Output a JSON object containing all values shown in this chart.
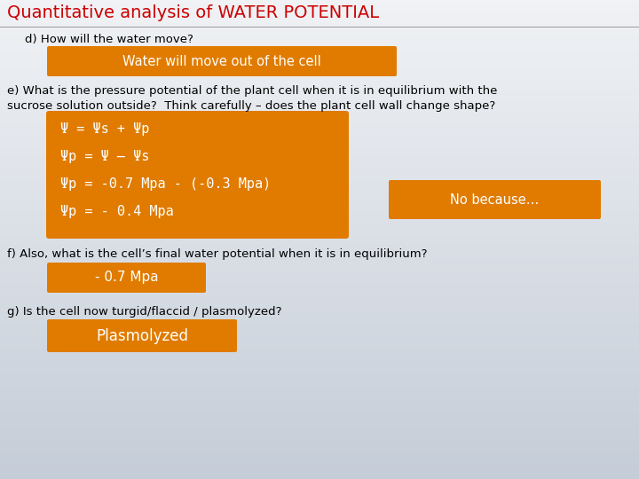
{
  "title": "Quantitative analysis of WATER POTENTIAL",
  "title_color": "#cc0000",
  "bg_color_top": "#f0f2f5",
  "bg_color_bottom": "#c5cdd8",
  "question_d": "d) How will the water move?",
  "answer_d": "Water will move out of the cell",
  "question_e1": "e) What is the pressure potential of the plant cell when it is in equilibrium with the",
  "question_e2": "sucrose solution outside?  Think carefully – does the plant cell wall change shape?",
  "answer_e_lines": [
    "Ψ = Ψs + Ψp",
    "Ψp = Ψ – Ψs",
    "Ψp = -0.7 Mpa - (-0.3 Mpa)",
    "Ψp = - 0.4 Mpa"
  ],
  "answer_e2": "No because…",
  "question_f": "f) Also, what is the cell’s final water potential when it is in equilibrium?",
  "answer_f": "- 0.7 Mpa",
  "question_g": "g) Is the cell now turgid/flaccid / plasmolyzed?",
  "answer_g": "Plasmolyzed",
  "box_color": "#e07b00",
  "box_text_color": "#ffffff",
  "body_text_color": "#000000",
  "font_size_title": 14,
  "font_size_body": 9.5,
  "font_size_box_d": 10.5,
  "font_size_eq": 11,
  "font_size_no_because": 10.5,
  "font_size_f": 11,
  "font_size_g": 12
}
